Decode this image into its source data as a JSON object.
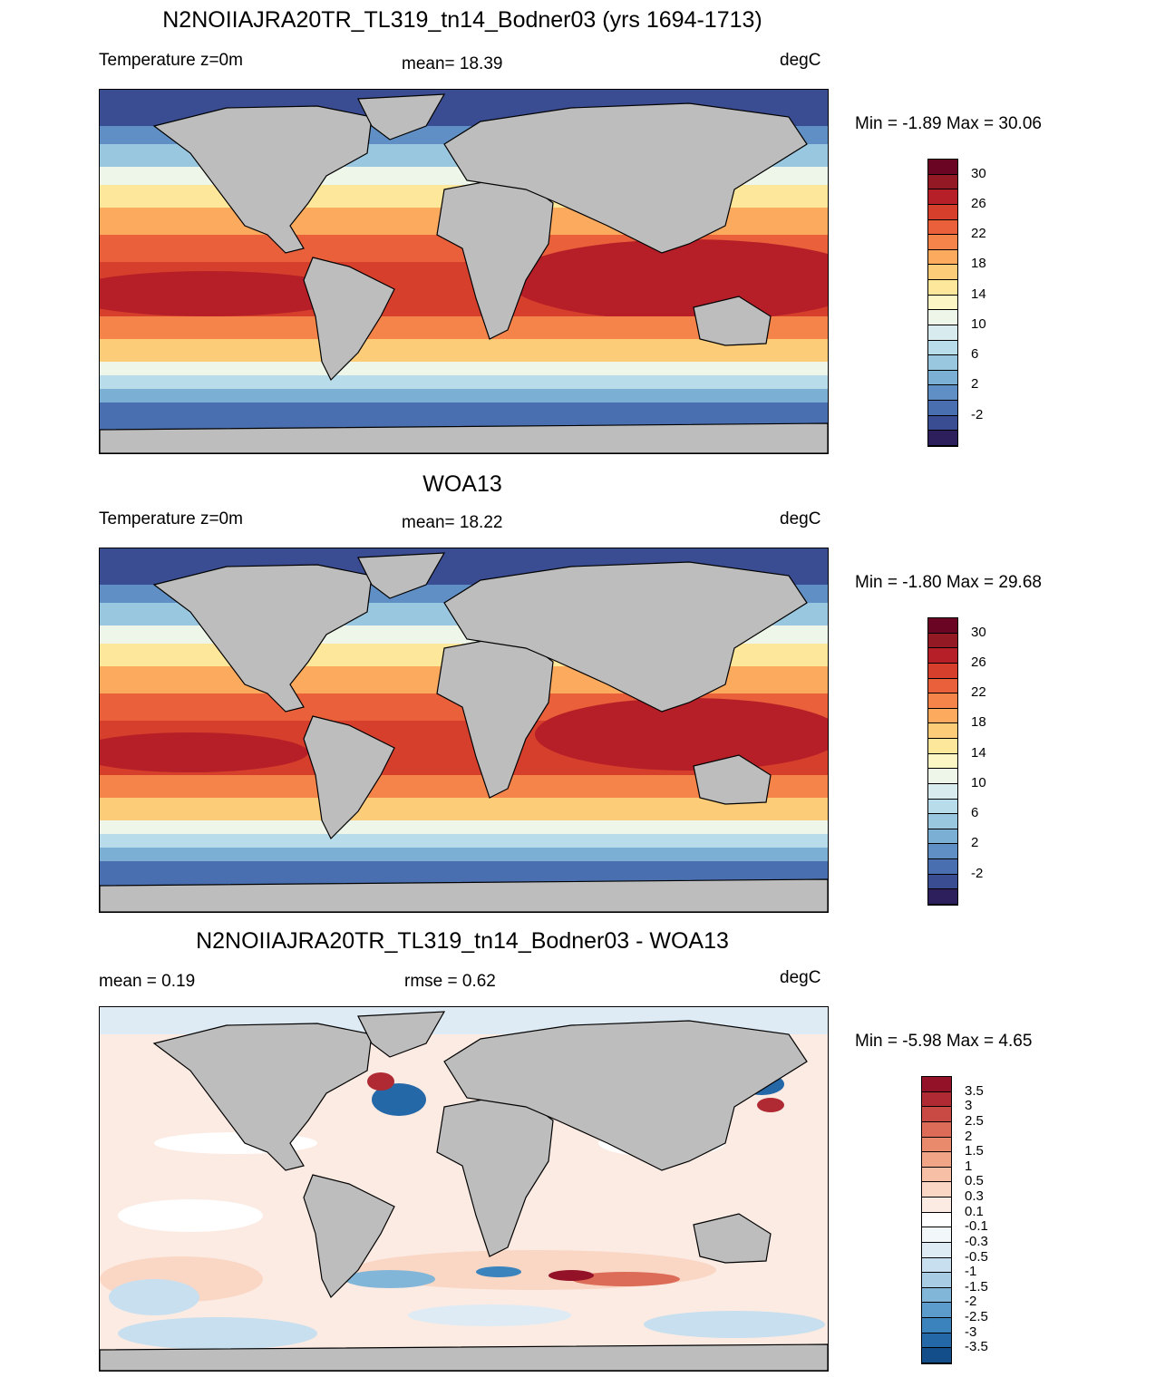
{
  "colors": {
    "land": "#bdbdbd",
    "temp_scale": [
      "#2d1e5c",
      "#3a4d92",
      "#4a6fb0",
      "#5f8fc4",
      "#7bafd4",
      "#99c7e0",
      "#b9dceb",
      "#d8ecf0",
      "#eef6ea",
      "#fcf6c4",
      "#fde79a",
      "#fdcc78",
      "#fbaa5e",
      "#f5844a",
      "#e9603a",
      "#d63f2c",
      "#b61f27",
      "#931a25",
      "#6a0624"
    ],
    "diff_scale": [
      "#053061",
      "#144e8a",
      "#2468a8",
      "#3a83bd",
      "#5b9ccc",
      "#81b6d9",
      "#a7cce4",
      "#c7dfee",
      "#deebf5",
      "#f2f7fa",
      "#ffffff",
      "#fcebe3",
      "#fad6c4",
      "#f7c0a6",
      "#f2a486",
      "#e98a6d",
      "#dc6c57",
      "#c94a44",
      "#b02a33",
      "#931228",
      "#67001f"
    ]
  },
  "panels": [
    {
      "title": "N2NOIIAJRA20TR_TL319_tn14_Bodner03 (yrs 1694-1713)",
      "left": "Temperature z=0m",
      "center": "mean=  18.39",
      "right": "degC",
      "minmax": "Min =  -1.89 Max =  30.06",
      "colorbar_labels": [
        "30",
        "26",
        "22",
        "18",
        "14",
        "10",
        "6",
        "2",
        "-2"
      ]
    },
    {
      "title": "WOA13",
      "left": "Temperature z=0m",
      "center": "mean=  18.22",
      "right": "degC",
      "minmax": "Min =  -1.80 Max =  29.68",
      "colorbar_labels": [
        "30",
        "26",
        "22",
        "18",
        "14",
        "10",
        "6",
        "2",
        "-2"
      ]
    },
    {
      "title": "N2NOIIAJRA20TR_TL319_tn14_Bodner03 - WOA13",
      "left": "mean =   0.19",
      "center": "rmse =   0.62",
      "right": "degC",
      "minmax": "Min =  -5.98 Max =   4.65",
      "colorbar_labels": [
        "3.5",
        "3",
        "2.5",
        "2",
        "1.5",
        "1",
        "0.5",
        "0.3",
        "0.1",
        "-0.1",
        "-0.3",
        "-0.5",
        "-1",
        "-1.5",
        "-2",
        "-2.5",
        "-3",
        "-3.5"
      ]
    }
  ]
}
